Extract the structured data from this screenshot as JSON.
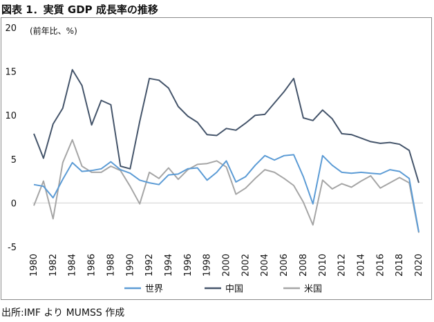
{
  "title": "図表 1．実質 GDP 成長率の推移",
  "source": "出所:IMF より MUMSS 作成",
  "chart_data": {
    "type": "line",
    "ylabel": "(前年比、%)",
    "ylim": [
      -5,
      20
    ],
    "yticks": [
      "20",
      "15",
      "10",
      "5",
      "0",
      "-5"
    ],
    "x": [
      1980,
      1981,
      1982,
      1983,
      1984,
      1985,
      1986,
      1987,
      1988,
      1989,
      1990,
      1991,
      1992,
      1993,
      1994,
      1995,
      1996,
      1997,
      1998,
      1999,
      2000,
      2001,
      2002,
      2003,
      2004,
      2005,
      2006,
      2007,
      2008,
      2009,
      2010,
      2011,
      2012,
      2013,
      2014,
      2015,
      2016,
      2017,
      2018,
      2019,
      2020
    ],
    "xticks": [
      "1980",
      "1982",
      "1984",
      "1986",
      "1988",
      "1990",
      "1992",
      "1994",
      "1996",
      "1998",
      "2000",
      "2002",
      "2004",
      "2006",
      "2008",
      "2010",
      "2012",
      "2014",
      "2016",
      "2018",
      "2020"
    ],
    "grid": false,
    "zero_line": true,
    "legend_position": "bottom",
    "series": [
      {
        "name": "世界",
        "color": "#5b9bd5",
        "values": [
          2.1,
          1.9,
          0.6,
          2.7,
          4.6,
          3.6,
          3.7,
          3.9,
          4.7,
          3.8,
          3.4,
          2.6,
          2.3,
          2.1,
          3.2,
          3.3,
          3.9,
          4.0,
          2.6,
          3.5,
          4.8,
          2.4,
          3.0,
          4.3,
          5.4,
          4.9,
          5.4,
          5.5,
          3.0,
          -0.1,
          5.4,
          4.3,
          3.5,
          3.4,
          3.5,
          3.4,
          3.3,
          3.8,
          3.6,
          2.8,
          -3.3
        ]
      },
      {
        "name": "中国",
        "color": "#44546a",
        "values": [
          7.9,
          5.1,
          9.0,
          10.8,
          15.2,
          13.4,
          8.9,
          11.7,
          11.2,
          4.2,
          3.9,
          9.3,
          14.2,
          14.0,
          13.1,
          11.0,
          9.9,
          9.2,
          7.8,
          7.7,
          8.5,
          8.3,
          9.1,
          10.0,
          10.1,
          11.4,
          12.7,
          14.2,
          9.7,
          9.4,
          10.6,
          9.6,
          7.9,
          7.8,
          7.4,
          7.0,
          6.8,
          6.9,
          6.7,
          6.0,
          2.3
        ]
      },
      {
        "name": "米国",
        "color": "#a5a5a5",
        "values": [
          -0.3,
          2.5,
          -1.8,
          4.6,
          7.2,
          4.2,
          3.5,
          3.5,
          4.2,
          3.7,
          1.9,
          -0.1,
          3.5,
          2.8,
          4.0,
          2.7,
          3.8,
          4.4,
          4.5,
          4.8,
          4.1,
          1.0,
          1.7,
          2.8,
          3.8,
          3.5,
          2.8,
          2.0,
          0.1,
          -2.5,
          2.6,
          1.6,
          2.2,
          1.8,
          2.5,
          3.1,
          1.7,
          2.3,
          2.9,
          2.3,
          -3.4
        ]
      }
    ]
  }
}
